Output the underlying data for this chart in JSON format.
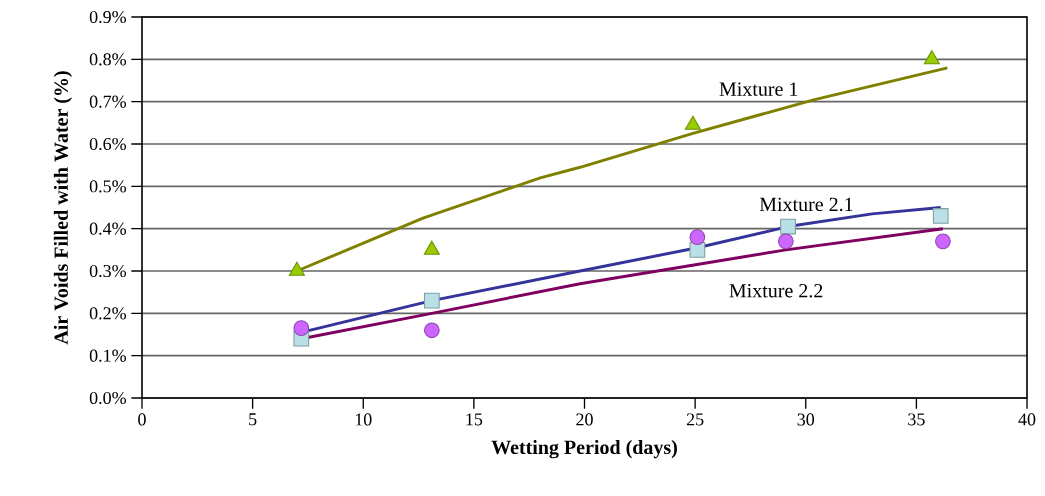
{
  "chart_data": {
    "type": "scatter",
    "xlabel": "Wetting Period (days)",
    "ylabel": "Air Voids Filled with Water (%)",
    "xlim": [
      0,
      40
    ],
    "xticks": [
      0,
      5,
      10,
      15,
      20,
      25,
      30,
      35,
      40
    ],
    "ylim": [
      0,
      0.9
    ],
    "yticks": [
      {
        "value": 0,
        "label": "0.0%"
      },
      {
        "value": 0.1,
        "label": "0.1%"
      },
      {
        "value": 0.2,
        "label": "0.2%"
      },
      {
        "value": 0.3,
        "label": "0.3%"
      },
      {
        "value": 0.4,
        "label": "0.4%"
      },
      {
        "value": 0.5,
        "label": "0.5%"
      },
      {
        "value": 0.6,
        "label": "0.6%"
      },
      {
        "value": 0.7,
        "label": "0.7%"
      },
      {
        "value": 0.8,
        "label": "0.8%"
      },
      {
        "value": 0.9,
        "label": "0.9%"
      }
    ],
    "grid": "y",
    "series": [
      {
        "marker": "triangle",
        "color": "#99cc00",
        "x": [
          7.0,
          13.1,
          24.9,
          35.7
        ],
        "values": [
          0.3,
          0.35,
          0.645,
          0.8
        ]
      },
      {
        "marker": "square",
        "color": "#b8e0e6",
        "x": [
          7.2,
          13.1,
          25.1,
          29.2,
          36.1
        ],
        "values": [
          0.14,
          0.23,
          0.35,
          0.405,
          0.43
        ]
      },
      {
        "marker": "circle",
        "color": "#cc66ff",
        "x": [
          7.2,
          13.1,
          25.1,
          29.1,
          36.2
        ],
        "values": [
          0.165,
          0.16,
          0.38,
          0.37,
          0.37
        ]
      },
      {
        "type": "line",
        "marker": "none",
        "name": "Mixture 1",
        "color": "#808000",
        "x": [
          7.0,
          12.7,
          18.0,
          19.8,
          24.9,
          30.4,
          36.4
        ],
        "values": [
          0.3,
          0.425,
          0.52,
          0.545,
          0.625,
          0.705,
          0.78
        ]
      },
      {
        "type": "line",
        "marker": "none",
        "name": "Mixture 2.1",
        "color": "#333399",
        "x": [
          7.2,
          13.1,
          19.8,
          25.1,
          29.2,
          33.0,
          36.1
        ],
        "values": [
          0.155,
          0.23,
          0.3,
          0.355,
          0.405,
          0.435,
          0.45
        ]
      },
      {
        "type": "line",
        "marker": "none",
        "name": "Mixture 2.2",
        "color": "#800060",
        "x": [
          7.2,
          13.1,
          19.8,
          29.1,
          36.2
        ],
        "values": [
          0.14,
          0.2,
          0.27,
          0.35,
          0.4
        ]
      }
    ]
  }
}
